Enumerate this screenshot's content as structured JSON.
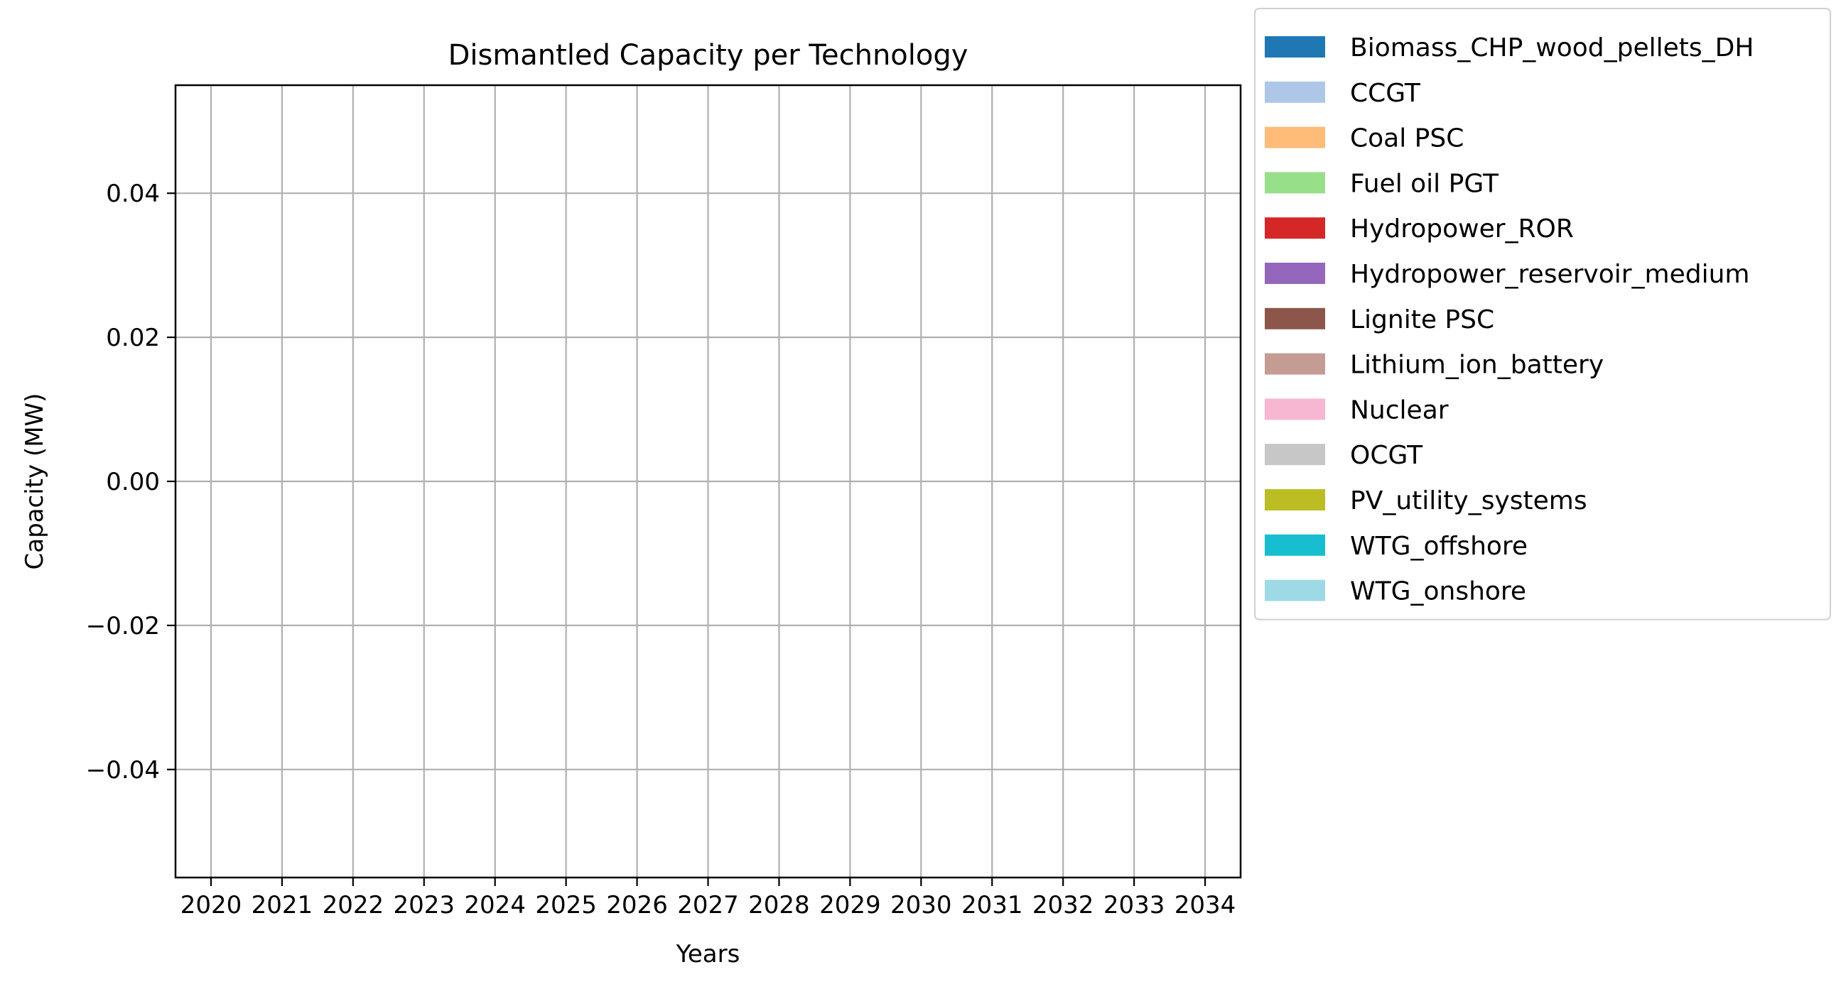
{
  "chart_data": {
    "type": "bar",
    "stacked": true,
    "title": "Dismantled Capacity per Technology",
    "xlabel": "Years",
    "ylabel": "Capacity (MW)",
    "categories": [
      "2020",
      "2021",
      "2022",
      "2023",
      "2024",
      "2025",
      "2026",
      "2027",
      "2028",
      "2029",
      "2030",
      "2031",
      "2032",
      "2033",
      "2034"
    ],
    "ylim": [
      -0.055,
      0.055
    ],
    "yticks": [
      -0.04,
      -0.02,
      0.0,
      0.02,
      0.04
    ],
    "ytick_labels": [
      "−0.04",
      "−0.02",
      "0.00",
      "0.02",
      "0.04"
    ],
    "grid": true,
    "legend_position": "outside-top-right",
    "series": [
      {
        "name": "Biomass_CHP_wood_pellets_DH",
        "color": "#1f77b4",
        "values": [
          0,
          0,
          0,
          0,
          0,
          0,
          0,
          0,
          0,
          0,
          0,
          0,
          0,
          0,
          0
        ]
      },
      {
        "name": "CCGT",
        "color": "#aec7e8",
        "values": [
          0,
          0,
          0,
          0,
          0,
          0,
          0,
          0,
          0,
          0,
          0,
          0,
          0,
          0,
          0
        ]
      },
      {
        "name": "Coal PSC",
        "color": "#ffbb78",
        "values": [
          0,
          0,
          0,
          0,
          0,
          0,
          0,
          0,
          0,
          0,
          0,
          0,
          0,
          0,
          0
        ]
      },
      {
        "name": "Fuel oil PGT",
        "color": "#98df8a",
        "values": [
          0,
          0,
          0,
          0,
          0,
          0,
          0,
          0,
          0,
          0,
          0,
          0,
          0,
          0,
          0
        ]
      },
      {
        "name": "Hydropower_ROR",
        "color": "#d62728",
        "values": [
          0,
          0,
          0,
          0,
          0,
          0,
          0,
          0,
          0,
          0,
          0,
          0,
          0,
          0,
          0
        ]
      },
      {
        "name": "Hydropower_reservoir_medium",
        "color": "#9467bd",
        "values": [
          0,
          0,
          0,
          0,
          0,
          0,
          0,
          0,
          0,
          0,
          0,
          0,
          0,
          0,
          0
        ]
      },
      {
        "name": "Lignite PSC",
        "color": "#8c564b",
        "values": [
          0,
          0,
          0,
          0,
          0,
          0,
          0,
          0,
          0,
          0,
          0,
          0,
          0,
          0,
          0
        ]
      },
      {
        "name": "Lithium_ion_battery",
        "color": "#c49c94",
        "values": [
          0,
          0,
          0,
          0,
          0,
          0,
          0,
          0,
          0,
          0,
          0,
          0,
          0,
          0,
          0
        ]
      },
      {
        "name": "Nuclear",
        "color": "#f7b6d2",
        "values": [
          0,
          0,
          0,
          0,
          0,
          0,
          0,
          0,
          0,
          0,
          0,
          0,
          0,
          0,
          0
        ]
      },
      {
        "name": "OCGT",
        "color": "#c7c7c7",
        "values": [
          0,
          0,
          0,
          0,
          0,
          0,
          0,
          0,
          0,
          0,
          0,
          0,
          0,
          0,
          0
        ]
      },
      {
        "name": "PV_utility_systems",
        "color": "#bcbd22",
        "values": [
          0,
          0,
          0,
          0,
          0,
          0,
          0,
          0,
          0,
          0,
          0,
          0,
          0,
          0,
          0
        ]
      },
      {
        "name": "WTG_offshore",
        "color": "#17becf",
        "values": [
          0,
          0,
          0,
          0,
          0,
          0,
          0,
          0,
          0,
          0,
          0,
          0,
          0,
          0,
          0
        ]
      },
      {
        "name": "WTG_onshore",
        "color": "#9edae5",
        "values": [
          0,
          0,
          0,
          0,
          0,
          0,
          0,
          0,
          0,
          0,
          0,
          0,
          0,
          0,
          0
        ]
      }
    ]
  }
}
